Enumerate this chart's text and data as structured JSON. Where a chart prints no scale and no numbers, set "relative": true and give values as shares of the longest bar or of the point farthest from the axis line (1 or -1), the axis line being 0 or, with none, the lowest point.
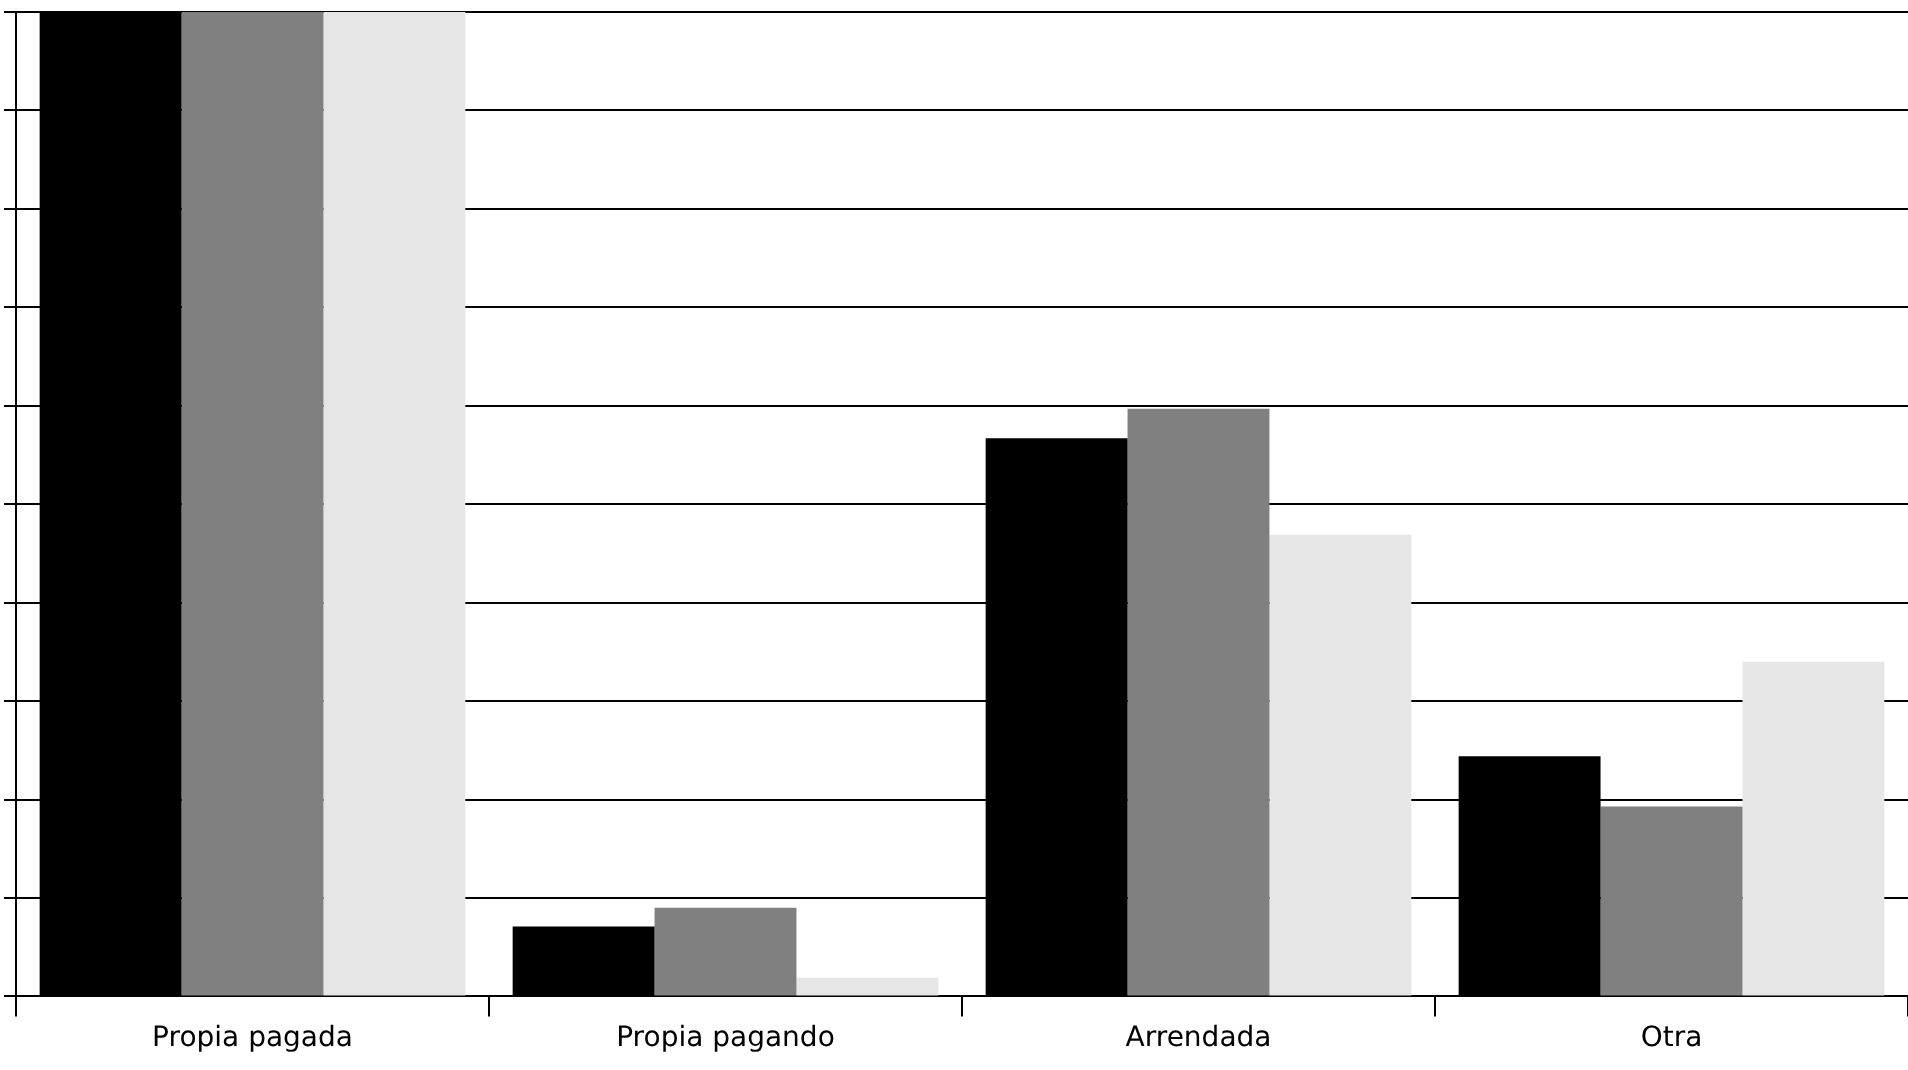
{
  "chart_data": {
    "type": "bar",
    "relative": true,
    "grid": "y",
    "legend": false,
    "categories": [
      "Propia pagada",
      "Propia pagando",
      "Arrendada",
      "Otra"
    ],
    "series": [
      {
        "color": "#000000",
        "values": [
          1,
          0.071,
          0.567,
          0.244
        ]
      },
      {
        "color": "#808080",
        "values": [
          1,
          0.09,
          0.597,
          0.193
        ]
      },
      {
        "color": "#e6e6e6",
        "values": [
          1,
          0.019,
          0.469,
          0.34
        ]
      }
    ]
  }
}
